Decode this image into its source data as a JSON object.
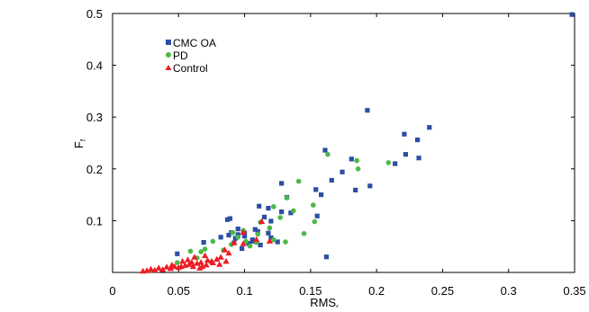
{
  "chart_data": {
    "type": "scatter",
    "title": "",
    "xlabel": "RMS",
    "xlabel_subscript": "r",
    "ylabel": "F",
    "ylabel_subscript": "f",
    "xlim": [
      0,
      0.35
    ],
    "ylim": [
      0,
      0.5
    ],
    "x_ticks": [
      "0",
      "0.05",
      "0.1",
      "0.15",
      "0.2",
      "0.25",
      "0.3",
      "0.35"
    ],
    "y_ticks": [
      "0.1",
      "0.2",
      "0.3",
      "0.4",
      "0.5"
    ],
    "grid": false,
    "legend_position": "top-left",
    "series": [
      {
        "name": "CMC OA",
        "marker": "square",
        "color": "#2c4ea3",
        "points": [
          [
            0.348,
            0.498
          ],
          [
            0.193,
            0.313
          ],
          [
            0.24,
            0.28
          ],
          [
            0.221,
            0.267
          ],
          [
            0.231,
            0.256
          ],
          [
            0.161,
            0.236
          ],
          [
            0.222,
            0.228
          ],
          [
            0.232,
            0.221
          ],
          [
            0.181,
            0.219
          ],
          [
            0.214,
            0.21
          ],
          [
            0.166,
            0.178
          ],
          [
            0.128,
            0.172
          ],
          [
            0.174,
            0.194
          ],
          [
            0.195,
            0.167
          ],
          [
            0.184,
            0.159
          ],
          [
            0.154,
            0.16
          ],
          [
            0.132,
            0.145
          ],
          [
            0.158,
            0.15
          ],
          [
            0.111,
            0.128
          ],
          [
            0.118,
            0.124
          ],
          [
            0.128,
            0.117
          ],
          [
            0.135,
            0.115
          ],
          [
            0.115,
            0.107
          ],
          [
            0.155,
            0.109
          ],
          [
            0.12,
            0.099
          ],
          [
            0.089,
            0.104
          ],
          [
            0.087,
            0.102
          ],
          [
            0.095,
            0.084
          ],
          [
            0.108,
            0.083
          ],
          [
            0.09,
            0.077
          ],
          [
            0.095,
            0.073
          ],
          [
            0.1,
            0.076
          ],
          [
            0.088,
            0.072
          ],
          [
            0.11,
            0.079
          ],
          [
            0.118,
            0.076
          ],
          [
            0.082,
            0.068
          ],
          [
            0.093,
            0.066
          ],
          [
            0.1,
            0.07
          ],
          [
            0.106,
            0.063
          ],
          [
            0.12,
            0.067
          ],
          [
            0.125,
            0.059
          ],
          [
            0.069,
            0.058
          ],
          [
            0.092,
            0.057
          ],
          [
            0.106,
            0.06
          ],
          [
            0.112,
            0.053
          ],
          [
            0.049,
            0.036
          ],
          [
            0.098,
            0.046
          ],
          [
            0.103,
            0.056
          ],
          [
            0.162,
            0.03
          ]
        ]
      },
      {
        "name": "PD",
        "marker": "circle",
        "color": "#4cb848",
        "points": [
          [
            0.163,
            0.228
          ],
          [
            0.185,
            0.216
          ],
          [
            0.209,
            0.212
          ],
          [
            0.186,
            0.2
          ],
          [
            0.141,
            0.176
          ],
          [
            0.132,
            0.144
          ],
          [
            0.122,
            0.127
          ],
          [
            0.152,
            0.13
          ],
          [
            0.137,
            0.119
          ],
          [
            0.127,
            0.106
          ],
          [
            0.153,
            0.098
          ],
          [
            0.112,
            0.097
          ],
          [
            0.119,
            0.086
          ],
          [
            0.091,
            0.077
          ],
          [
            0.099,
            0.081
          ],
          [
            0.11,
            0.074
          ],
          [
            0.095,
            0.068
          ],
          [
            0.076,
            0.06
          ],
          [
            0.101,
            0.06
          ],
          [
            0.109,
            0.058
          ],
          [
            0.122,
            0.063
          ],
          [
            0.131,
            0.059
          ],
          [
            0.09,
            0.054
          ],
          [
            0.145,
            0.075
          ],
          [
            0.059,
            0.041
          ],
          [
            0.067,
            0.04
          ],
          [
            0.07,
            0.045
          ],
          [
            0.084,
            0.043
          ],
          [
            0.049,
            0.019
          ],
          [
            0.064,
            0.028
          ],
          [
            0.104,
            0.051
          ]
        ]
      },
      {
        "name": "Control",
        "marker": "triangle",
        "color": "#ee1c24",
        "points": [
          [
            0.113,
            0.099
          ],
          [
            0.099,
            0.078
          ],
          [
            0.109,
            0.064
          ],
          [
            0.119,
            0.061
          ],
          [
            0.092,
            0.058
          ],
          [
            0.099,
            0.056
          ],
          [
            0.085,
            0.044
          ],
          [
            0.088,
            0.038
          ],
          [
            0.082,
            0.03
          ],
          [
            0.079,
            0.026
          ],
          [
            0.075,
            0.022
          ],
          [
            0.07,
            0.033
          ],
          [
            0.072,
            0.024
          ],
          [
            0.067,
            0.02
          ],
          [
            0.064,
            0.018
          ],
          [
            0.06,
            0.02
          ],
          [
            0.058,
            0.016
          ],
          [
            0.055,
            0.014
          ],
          [
            0.052,
            0.012
          ],
          [
            0.05,
            0.01
          ],
          [
            0.047,
            0.012
          ],
          [
            0.044,
            0.008
          ],
          [
            0.041,
            0.011
          ],
          [
            0.038,
            0.006
          ],
          [
            0.035,
            0.009
          ],
          [
            0.032,
            0.005
          ],
          [
            0.029,
            0.007
          ],
          [
            0.026,
            0.004
          ],
          [
            0.023,
            0.003
          ],
          [
            0.061,
            0.012
          ],
          [
            0.066,
            0.009
          ],
          [
            0.071,
            0.015
          ],
          [
            0.076,
            0.019
          ],
          [
            0.081,
            0.016
          ],
          [
            0.086,
            0.022
          ],
          [
            0.053,
            0.022
          ],
          [
            0.057,
            0.025
          ],
          [
            0.062,
            0.03
          ],
          [
            0.068,
            0.012
          ],
          [
            0.045,
            0.015
          ]
        ]
      }
    ]
  }
}
